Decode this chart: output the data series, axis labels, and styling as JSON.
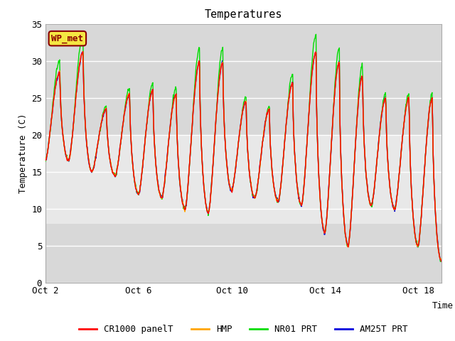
{
  "title": "Temperatures",
  "ylabel": "Temperature (C)",
  "xlabel": "Time",
  "ylim": [
    0,
    35
  ],
  "background_color": "#ffffff",
  "plot_bg_color": "#d8d8d8",
  "plot_bg_light": "#e8e8e8",
  "grid_color": "#c0c0c0",
  "annotation_label": "WP_met",
  "annotation_bg": "#f5e642",
  "annotation_border": "#8b0000",
  "annotation_text_color": "#8b0000",
  "series_colors": {
    "CR1000 panelT": "#ff0000",
    "HMP": "#ffa500",
    "NR01 PRT": "#00dd00",
    "AM25T PRT": "#0000dd"
  },
  "xtick_labels": [
    "Oct 2",
    "Oct 6",
    "Oct 10",
    "Oct 14",
    "Oct 18"
  ],
  "xtick_positions": [
    0,
    4,
    8,
    12,
    16
  ],
  "ytick_positions": [
    0,
    5,
    10,
    15,
    20,
    25,
    30,
    35
  ],
  "day_peaks": [
    28.5,
    31.2,
    23.5,
    25.5,
    26.0,
    25.5,
    29.8,
    29.8,
    24.5,
    23.5,
    27.0,
    31.2,
    29.8,
    28.0,
    25.0,
    25.0,
    25.0,
    25.0,
    25.5,
    29.5,
    25.5
  ],
  "night_lows": [
    16.5,
    16.5,
    15.0,
    14.5,
    12.0,
    11.5,
    10.0,
    9.5,
    12.5,
    11.5,
    11.0,
    10.5,
    6.8,
    5.0,
    10.5,
    10.0,
    5.0,
    3.0,
    10.0,
    9.8,
    5.0
  ],
  "font_family": "monospace"
}
